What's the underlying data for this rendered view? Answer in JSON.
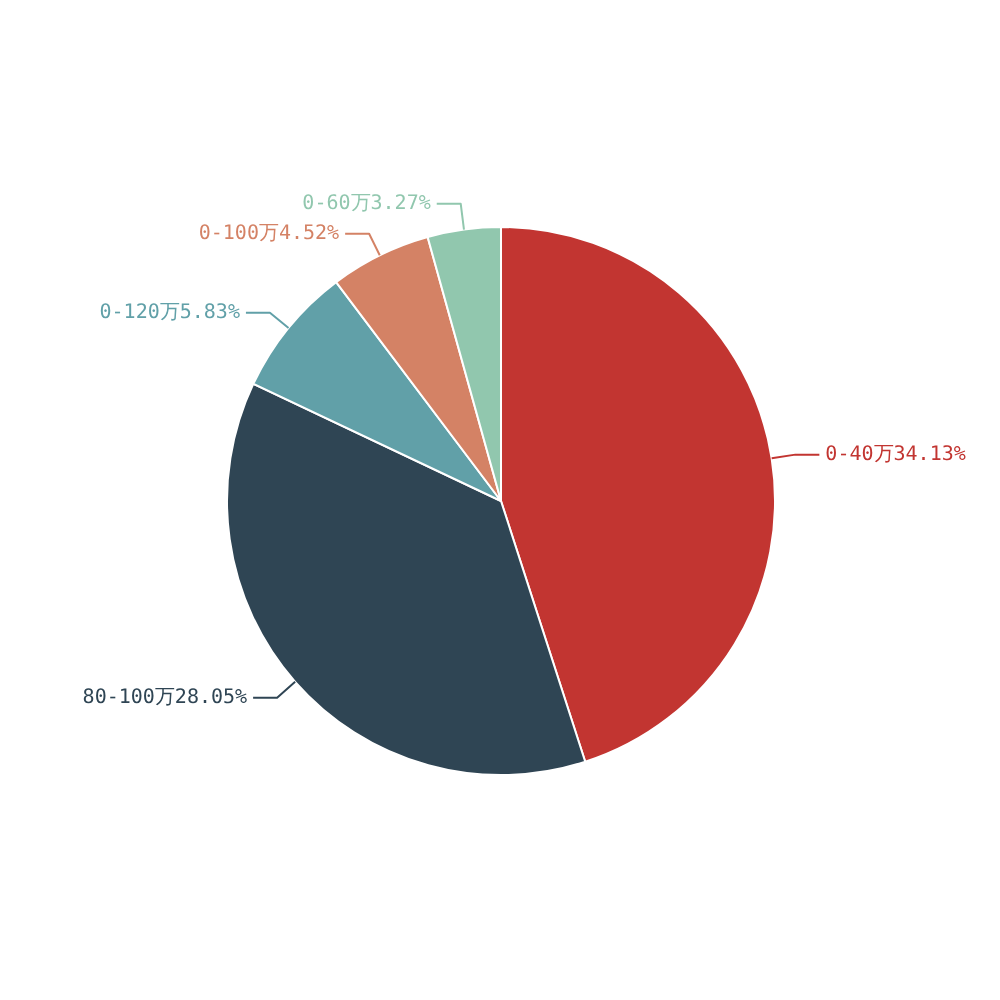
{
  "chart_data": {
    "type": "pie",
    "categories": [
      "0-40万",
      "80-100万",
      "0-120万",
      "0-100万",
      "0-60万"
    ],
    "values": [
      34.13,
      28.05,
      5.83,
      4.52,
      3.27
    ],
    "value_labels": [
      "34.13%",
      "28.05%",
      "5.83%",
      "4.52%",
      "3.27%"
    ],
    "colors": [
      "#c23531",
      "#2f4554",
      "#61a0a8",
      "#d48265",
      "#91c7ae"
    ]
  }
}
